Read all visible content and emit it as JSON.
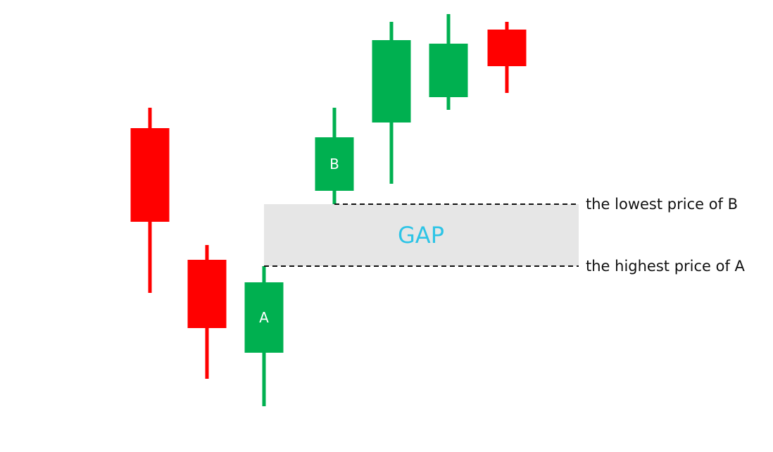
{
  "chart_data": {
    "type": "candlestick",
    "colors": {
      "up": "#00b050",
      "down": "#ff0000",
      "gap_fill": "#e6e6e6",
      "gap_text": "#2ec4e6",
      "guide": "#111111"
    },
    "candles": [
      {
        "open": 460,
        "close": 327,
        "high": 489,
        "low": 226,
        "direction": "down",
        "label": ""
      },
      {
        "open": 273,
        "close": 176,
        "high": 294,
        "low": 104,
        "direction": "down",
        "label": ""
      },
      {
        "open": 141,
        "close": 241,
        "high": 264,
        "low": 65,
        "direction": "up",
        "label": "A"
      },
      {
        "open": 371,
        "close": 447,
        "high": 489,
        "low": 352,
        "direction": "up",
        "label": "B"
      },
      {
        "open": 468,
        "close": 585,
        "high": 611,
        "low": 381,
        "direction": "up",
        "label": ""
      },
      {
        "open": 504,
        "close": 580,
        "high": 622,
        "low": 486,
        "direction": "up",
        "label": ""
      },
      {
        "open": 600,
        "close": 548,
        "high": 611,
        "low": 510,
        "direction": "down",
        "label": ""
      }
    ],
    "gap": {
      "upper": 352,
      "lower": 264,
      "label": "GAP"
    },
    "annotations": [
      {
        "text": "the lowest price of B",
        "value": 352
      },
      {
        "text": "the highest price of A",
        "value": 264
      }
    ]
  }
}
